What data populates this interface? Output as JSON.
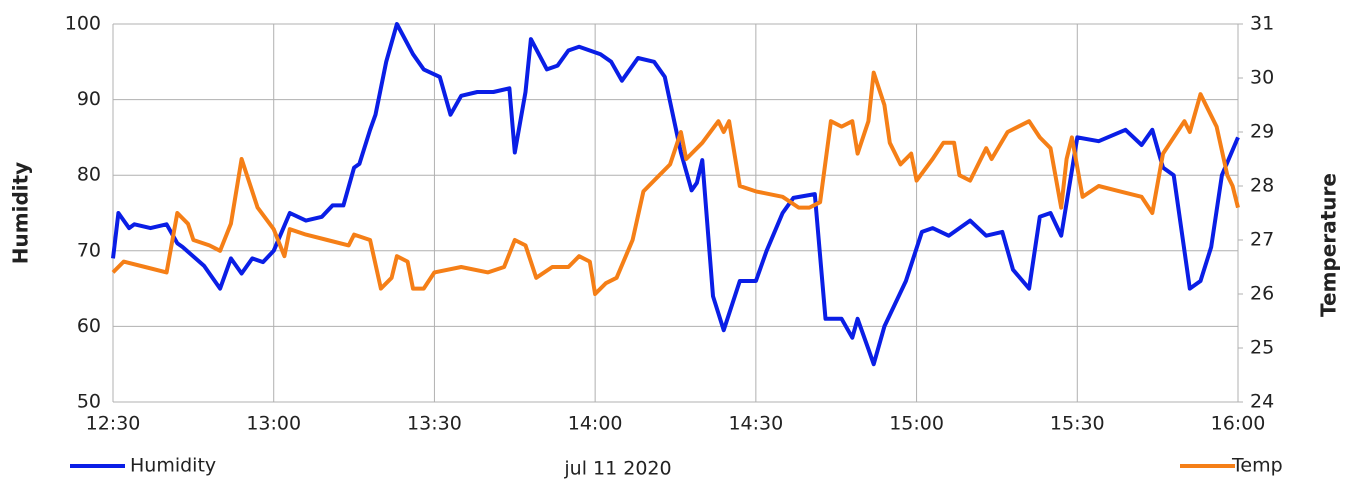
{
  "chart_data": {
    "type": "line",
    "x_label": "jul 11 2020",
    "y_label": "Humidity",
    "y2_label": "Temperature",
    "xlim": [
      "12:30",
      "16:00"
    ],
    "xticks": [
      "12:30",
      "13:00",
      "13:30",
      "14:00",
      "14:30",
      "15:00",
      "15:30",
      "16:00"
    ],
    "ylim": [
      50,
      100
    ],
    "yticks": [
      50,
      60,
      70,
      80,
      90,
      100
    ],
    "y2lim": [
      24,
      31
    ],
    "y2ticks": [
      24,
      25,
      26,
      27,
      28,
      29,
      30,
      31
    ],
    "grid": true,
    "legend": "bottom",
    "series": [
      {
        "name": "Humidity",
        "color": "#0a1ee6",
        "x": [
          "12:30",
          "12:31",
          "12:33",
          "12:34",
          "12:37",
          "12:40",
          "12:42",
          "12:43",
          "12:47",
          "12:50",
          "12:52",
          "12:54",
          "12:56",
          "12:58",
          "13:00",
          "13:03",
          "13:06",
          "13:09",
          "13:11",
          "13:13",
          "13:15",
          "13:16",
          "13:18",
          "13:19",
          "13:21",
          "13:23",
          "13:26",
          "13:28",
          "13:31",
          "13:33",
          "13:35",
          "13:38",
          "13:41",
          "13:44",
          "13:45",
          "13:47",
          "13:48",
          "13:51",
          "13:53",
          "13:55",
          "13:57",
          "14:01",
          "14:03",
          "14:05",
          "14:08",
          "14:11",
          "14:13",
          "14:16",
          "14:18",
          "14:19",
          "14:20",
          "14:22",
          "14:24",
          "14:27",
          "14:30",
          "14:32",
          "14:35",
          "14:37",
          "14:41",
          "14:43",
          "14:46",
          "14:48",
          "14:49",
          "14:51",
          "14:52",
          "14:54",
          "14:58",
          "15:01",
          "15:03",
          "15:06",
          "15:10",
          "15:13",
          "15:16",
          "15:18",
          "15:21",
          "15:23",
          "15:25",
          "15:27",
          "15:30",
          "15:34",
          "15:39",
          "15:42",
          "15:44",
          "15:46",
          "15:48",
          "15:51",
          "15:53",
          "15:55",
          "15:57",
          "16:00"
        ],
        "values": [
          69,
          75,
          73,
          73.5,
          73,
          73.5,
          71,
          70.5,
          68,
          65,
          69,
          67,
          69,
          68.5,
          70,
          75,
          74,
          74.5,
          76,
          76,
          81,
          81.5,
          86,
          88,
          95,
          100,
          96,
          94,
          93,
          88,
          90.5,
          91,
          91,
          91.5,
          83,
          91,
          98,
          94,
          94.5,
          96.5,
          97,
          96,
          95,
          92.5,
          95.5,
          95,
          93,
          83,
          78,
          79,
          82,
          64,
          59.5,
          66,
          66,
          70,
          75,
          77,
          77.5,
          61,
          61,
          58.5,
          61,
          57,
          55,
          60,
          66,
          72.5,
          73,
          72,
          74,
          72,
          72.5,
          67.5,
          65,
          74.5,
          75,
          72,
          85,
          84.5,
          86,
          84,
          86,
          81,
          80,
          65,
          66,
          70.5,
          80,
          85
        ]
      },
      {
        "name": "Temp",
        "color": "#f57f17",
        "axis": "y2",
        "x": [
          "12:30",
          "12:32",
          "12:36",
          "12:40",
          "12:42",
          "12:44",
          "12:45",
          "12:48",
          "12:50",
          "12:52",
          "12:54",
          "12:57",
          "13:00",
          "13:02",
          "13:03",
          "13:06",
          "13:10",
          "13:14",
          "13:15",
          "13:18",
          "13:20",
          "13:22",
          "13:23",
          "13:25",
          "13:26",
          "13:28",
          "13:30",
          "13:35",
          "13:40",
          "13:43",
          "13:45",
          "13:47",
          "13:49",
          "13:52",
          "13:55",
          "13:57",
          "13:59",
          "14:00",
          "14:02",
          "14:04",
          "14:07",
          "14:09",
          "14:12",
          "14:14",
          "14:16",
          "14:17",
          "14:20",
          "14:23",
          "14:24",
          "14:25",
          "14:27",
          "14:30",
          "14:35",
          "14:38",
          "14:40",
          "14:42",
          "14:44",
          "14:46",
          "14:48",
          "14:49",
          "14:51",
          "14:52",
          "14:54",
          "14:55",
          "14:57",
          "14:59",
          "15:00",
          "15:03",
          "15:05",
          "15:07",
          "15:08",
          "15:10",
          "15:13",
          "15:14",
          "15:17",
          "15:21",
          "15:23",
          "15:25",
          "15:27",
          "15:28",
          "15:29",
          "15:31",
          "15:34",
          "15:38",
          "15:42",
          "15:44",
          "15:46",
          "15:50",
          "15:51",
          "15:53",
          "15:56",
          "15:58",
          "15:59",
          "16:00"
        ],
        "values": [
          26.4,
          26.6,
          26.5,
          26.4,
          27.5,
          27.3,
          27.0,
          26.9,
          26.8,
          27.3,
          28.5,
          27.6,
          27.2,
          26.7,
          27.2,
          27.1,
          27.0,
          26.9,
          27.1,
          27.0,
          26.1,
          26.3,
          26.7,
          26.6,
          26.1,
          26.1,
          26.4,
          26.5,
          26.4,
          26.5,
          27.0,
          26.9,
          26.3,
          26.5,
          26.5,
          26.7,
          26.6,
          26.0,
          26.2,
          26.3,
          27.0,
          27.9,
          28.2,
          28.4,
          29.0,
          28.5,
          28.8,
          29.2,
          29.0,
          29.2,
          28.0,
          27.9,
          27.8,
          27.6,
          27.6,
          27.7,
          29.2,
          29.1,
          29.2,
          28.6,
          29.2,
          30.1,
          29.5,
          28.8,
          28.4,
          28.6,
          28.1,
          28.5,
          28.8,
          28.8,
          28.2,
          28.1,
          28.7,
          28.5,
          29.0,
          29.2,
          28.9,
          28.7,
          27.6,
          28.5,
          28.9,
          27.8,
          28.0,
          27.9,
          27.8,
          27.5,
          28.6,
          29.2,
          29.0,
          29.7,
          29.1,
          28.2,
          28.0,
          27.6
        ]
      }
    ]
  }
}
